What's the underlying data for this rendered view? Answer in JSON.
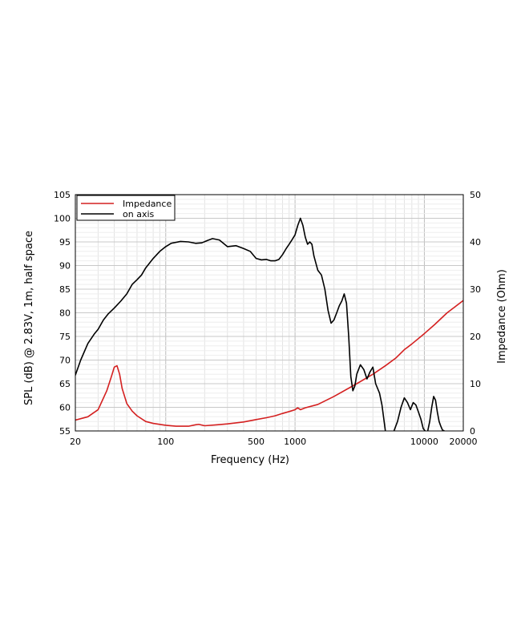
{
  "chart_data": {
    "type": "line",
    "title": "",
    "xlabel": "Frequency (Hz)",
    "ylabel": "SPL (dB) @ 2.83V, 1m, half space",
    "y2label": "Impedance (Ohm)",
    "xscale": "log",
    "xlim": [
      20,
      20000
    ],
    "ylim": [
      55,
      105
    ],
    "y2lim": [
      0,
      50
    ],
    "grid": true,
    "legend_position": "top-left",
    "x_ticks": [
      {
        "value": 20,
        "label": "20"
      },
      {
        "value": 100,
        "label": "100"
      },
      {
        "value": 500,
        "label": "500"
      },
      {
        "value": 1000,
        "label": "1000"
      },
      {
        "value": 10000,
        "label": "10000"
      },
      {
        "value": 20000,
        "label": "20000"
      }
    ],
    "y_ticks": [
      {
        "value": 55,
        "label": "55"
      },
      {
        "value": 60,
        "label": "60"
      },
      {
        "value": 65,
        "label": "65"
      },
      {
        "value": 70,
        "label": "70"
      },
      {
        "value": 75,
        "label": "75"
      },
      {
        "value": 80,
        "label": "80"
      },
      {
        "value": 85,
        "label": "85"
      },
      {
        "value": 90,
        "label": "90"
      },
      {
        "value": 95,
        "label": "95"
      },
      {
        "value": 100,
        "label": "100"
      },
      {
        "value": 105,
        "label": "105"
      }
    ],
    "y2_ticks": [
      {
        "value": 0,
        "label": "0"
      },
      {
        "value": 10,
        "label": "10"
      },
      {
        "value": 20,
        "label": "20"
      },
      {
        "value": 30,
        "label": "30"
      },
      {
        "value": 40,
        "label": "40"
      },
      {
        "value": 50,
        "label": "50"
      }
    ],
    "series": [
      {
        "name": "Impedance",
        "axis": "right",
        "color": "#d42020",
        "x": [
          20,
          25,
          30,
          35,
          38,
          40,
          42,
          44,
          46,
          50,
          55,
          60,
          70,
          80,
          100,
          120,
          150,
          170,
          180,
          200,
          250,
          300,
          400,
          500,
          600,
          700,
          800,
          900,
          1000,
          1050,
          1100,
          1200,
          1500,
          2000,
          3000,
          4000,
          5000,
          6000,
          7000,
          8000,
          10000,
          12000,
          15000,
          20000
        ],
        "values": [
          2.3,
          3.0,
          4.5,
          8.5,
          11.5,
          13.5,
          13.8,
          12.0,
          9.0,
          5.8,
          4.2,
          3.2,
          2.0,
          1.6,
          1.2,
          1.0,
          1.0,
          1.3,
          1.4,
          1.1,
          1.3,
          1.5,
          1.9,
          2.4,
          2.8,
          3.2,
          3.7,
          4.1,
          4.5,
          4.9,
          4.5,
          4.9,
          5.6,
          7.3,
          10.0,
          12.0,
          13.8,
          15.4,
          17.2,
          18.4,
          20.6,
          22.5,
          25.0,
          27.6
        ]
      },
      {
        "name": "on axis",
        "axis": "left",
        "color": "#000000",
        "x": [
          20,
          22,
          25,
          28,
          30,
          33,
          36,
          40,
          45,
          50,
          55,
          60,
          65,
          70,
          80,
          90,
          100,
          110,
          130,
          150,
          170,
          190,
          210,
          230,
          260,
          300,
          350,
          400,
          450,
          500,
          550,
          600,
          650,
          700,
          750,
          800,
          850,
          900,
          950,
          1000,
          1050,
          1100,
          1150,
          1200,
          1250,
          1300,
          1350,
          1400,
          1500,
          1600,
          1700,
          1800,
          1900,
          2000,
          2100,
          2200,
          2300,
          2400,
          2500,
          2600,
          2700,
          2800,
          2900,
          3000,
          3200,
          3400,
          3600,
          3800,
          4000,
          4200,
          4500,
          4700,
          5000,
          5800,
          6200,
          6600,
          7000,
          7400,
          7800,
          8200,
          8600,
          9000,
          9400,
          9800,
          10200,
          10600,
          11000,
          11400,
          11800,
          12200,
          12600,
          13000,
          13400,
          13800,
          14500,
          15000
        ],
        "values": [
          66.8,
          70.0,
          73.5,
          75.5,
          76.5,
          78.5,
          79.8,
          81.0,
          82.5,
          84.0,
          86.0,
          87.0,
          88.0,
          89.5,
          91.5,
          93.0,
          94.0,
          94.7,
          95.1,
          95.0,
          94.7,
          94.8,
          95.3,
          95.7,
          95.4,
          94.0,
          94.2,
          93.6,
          93.0,
          91.5,
          91.2,
          91.3,
          91.0,
          91.0,
          91.3,
          92.3,
          93.5,
          94.5,
          95.5,
          96.5,
          98.5,
          100.0,
          98.5,
          96.0,
          94.5,
          95.0,
          94.5,
          92.0,
          89.0,
          88.0,
          85.0,
          80.5,
          77.8,
          78.5,
          80.0,
          81.5,
          82.5,
          84.0,
          82.0,
          75.0,
          66.5,
          63.5,
          64.5,
          67.0,
          69.0,
          68.0,
          66.0,
          67.5,
          68.5,
          65.0,
          63.0,
          60.5,
          54.9,
          54.9,
          57.0,
          60.0,
          62.0,
          61.0,
          59.5,
          61.0,
          60.5,
          59.0,
          57.5,
          55.5,
          54.9,
          54.9,
          57.0,
          60.0,
          62.3,
          61.5,
          59.0,
          57.0,
          56.0,
          55.2,
          54.9,
          54.9
        ]
      }
    ]
  }
}
